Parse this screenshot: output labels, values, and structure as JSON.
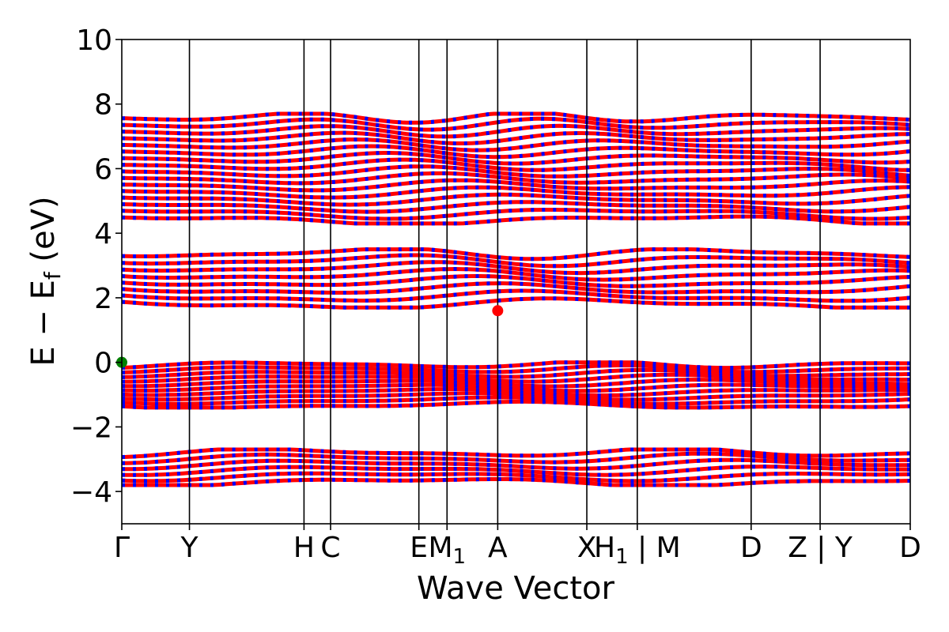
{
  "chart_data": {
    "type": "line",
    "title": "",
    "xlabel": "Wave Vector",
    "ylabel": "E − E",
    "ylabel_sub": "f",
    "ylabel_unit": " (eV)",
    "ylim": [
      -5,
      10
    ],
    "y_ticks": [
      -4,
      -2,
      0,
      2,
      4,
      6,
      8,
      10
    ],
    "y_tick_labels": [
      "−4",
      "−2",
      "0",
      "2",
      "4",
      "6",
      "8",
      "10"
    ],
    "k_path_range": [
      0,
      1
    ],
    "high_symmetry_points": [
      {
        "label": "Γ",
        "k": 0.0
      },
      {
        "label": "Y",
        "k": 0.0858
      },
      {
        "label": "H",
        "k": 0.2311
      },
      {
        "label": "C",
        "k": 0.2648
      },
      {
        "label": "E",
        "k": 0.3768
      },
      {
        "label": "M1",
        "k": 0.4125
      },
      {
        "label": "A",
        "k": 0.4768
      },
      {
        "label": "X",
        "k": 0.5898
      },
      {
        "label": "H1 | M",
        "k": 0.6538
      },
      {
        "label": "D",
        "k": 0.7982
      },
      {
        "label": "Z | Y",
        "k": 0.8857
      },
      {
        "label": "D",
        "k": 1.0
      }
    ],
    "band_groups": [
      {
        "name": "conduction-upper",
        "ymin": 4.3,
        "ymax": 7.7,
        "count": 16
      },
      {
        "name": "conduction-lower",
        "ymin": 1.7,
        "ymax": 3.5,
        "count": 8
      },
      {
        "name": "valence-upper",
        "ymin": -1.4,
        "ymax": 0.0,
        "count": 10
      },
      {
        "name": "valence-lower",
        "ymin": -3.8,
        "ymax": -2.7,
        "count": 6
      }
    ],
    "spin_colors": {
      "spin_up": "#ff0000",
      "spin_down": "#0000ff"
    },
    "vbm": {
      "k": 0.0,
      "energy": 0.0,
      "color": "#008000"
    },
    "cbm": {
      "k": 0.4768,
      "energy": 1.6,
      "color": "#ff0000"
    },
    "grid": false,
    "legend": "none"
  }
}
